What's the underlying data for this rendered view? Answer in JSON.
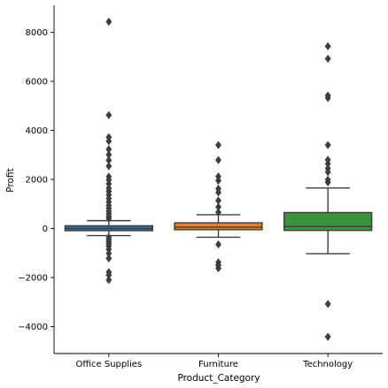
{
  "chart_data": {
    "type": "box",
    "xlabel": "Product_Category",
    "ylabel": "Profit",
    "ylim": [
      -5100,
      9100
    ],
    "yticks": [
      -4000,
      -2000,
      0,
      2000,
      4000,
      6000,
      8000
    ],
    "ytick_labels": [
      "−4000",
      "−2000",
      "0",
      "2000",
      "4000",
      "6000",
      "8000"
    ],
    "grid": false,
    "categories": [
      "Office Supplies",
      "Furniture",
      "Technology"
    ],
    "boxes": [
      {
        "category": "Office Supplies",
        "color": "#3a6f9a",
        "q1": -90,
        "median": 0,
        "q3": 110,
        "whisker_low": -290,
        "whisker_high": 320,
        "outliers": [
          8430,
          4620,
          3720,
          3560,
          3230,
          3010,
          2780,
          2540,
          2110,
          1980,
          1820,
          1640,
          1510,
          1370,
          1220,
          1080,
          940,
          820,
          700,
          590,
          480,
          400,
          -360,
          -450,
          -540,
          -620,
          -720,
          -850,
          -1020,
          -1220,
          -1780,
          -1900,
          -2100
        ]
      },
      {
        "category": "Furniture",
        "color": "#e1812c",
        "q1": -50,
        "median": 50,
        "q3": 230,
        "whisker_low": -360,
        "whisker_high": 560,
        "outliers": [
          3400,
          2790,
          2120,
          1950,
          1620,
          1470,
          1140,
          880,
          660,
          -650,
          -1380,
          -1500,
          -1620
        ]
      },
      {
        "category": "Technology",
        "color": "#3a923a",
        "q1": -80,
        "median": 80,
        "q3": 650,
        "whisker_low": -1030,
        "whisker_high": 1650,
        "outliers": [
          7430,
          6920,
          5420,
          5320,
          3400,
          2800,
          2640,
          2450,
          2300,
          1990,
          1880,
          -3080,
          -4420
        ]
      }
    ]
  }
}
